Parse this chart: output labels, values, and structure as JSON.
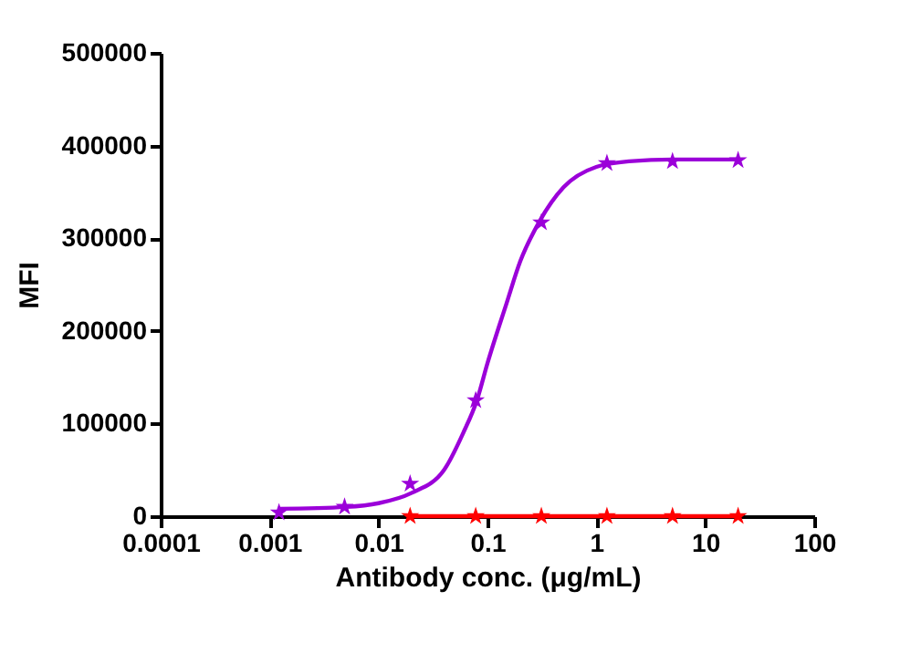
{
  "chart_data": {
    "type": "scatter",
    "xlabel": "Antibody conc. (μg/mL)",
    "ylabel": "MFI",
    "log": "x",
    "grid": false,
    "xlim": [
      0.0001,
      100
    ],
    "xticks": [
      {
        "value": 0.0001,
        "label": "0.0001"
      },
      {
        "value": 0.001,
        "label": "0.001"
      },
      {
        "value": 0.01,
        "label": "0.01"
      },
      {
        "value": 0.1,
        "label": "0.1"
      },
      1,
      10,
      100
    ],
    "ylim": [
      0,
      500000
    ],
    "yticks": [
      0,
      100000,
      200000,
      300000,
      400000,
      500000
    ],
    "series": [
      {
        "type": "line",
        "marker": "none",
        "color": "#9b00d9",
        "x": [
          0.0012,
          0.005,
          0.01,
          0.02,
          0.04,
          0.06,
          0.08,
          0.1,
          0.15,
          0.2,
          0.3,
          0.5,
          1,
          2,
          5,
          20
        ],
        "values": [
          8000,
          10000,
          14000,
          25000,
          50000,
          90000,
          125000,
          165000,
          230000,
          275000,
          318000,
          355000,
          377000,
          383000,
          385000,
          385000
        ]
      },
      {
        "marker": "star",
        "color": "#9b00d9",
        "x": [
          0.00122,
          0.00488,
          0.0195,
          0.078,
          0.3125,
          1.25,
          5,
          20
        ],
        "values": [
          4000,
          10000,
          35000,
          125000,
          317000,
          381000,
          383000,
          384000
        ]
      },
      {
        "type": "line",
        "marker": "star",
        "color": "#ff0000",
        "x": [
          0.0195,
          0.078,
          0.3125,
          1.25,
          5,
          20
        ],
        "values": [
          0,
          0,
          0,
          0,
          0,
          0
        ]
      }
    ]
  }
}
